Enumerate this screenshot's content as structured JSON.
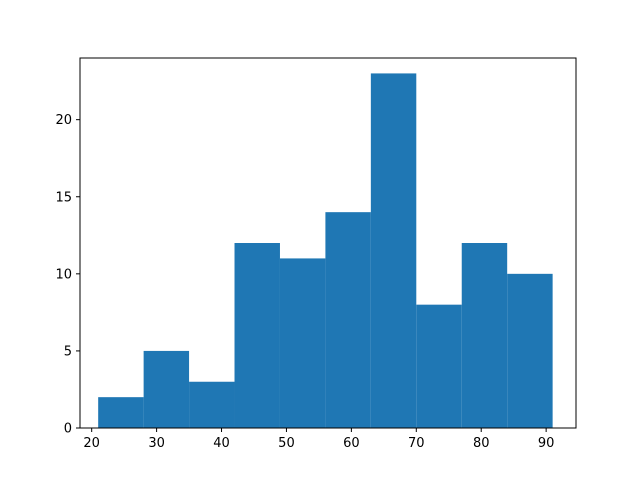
{
  "chart_data": {
    "type": "bar",
    "subtype": "histogram",
    "title": "",
    "xlabel": "",
    "ylabel": "",
    "bin_edges": [
      21,
      28,
      35,
      42,
      49,
      56,
      63,
      70,
      77,
      84,
      91
    ],
    "values": [
      2,
      5,
      3,
      12,
      11,
      14,
      23,
      8,
      12,
      10
    ],
    "xlim": [
      18.2,
      94.6
    ],
    "ylim": [
      0,
      24
    ],
    "x_ticks": [
      20,
      30,
      40,
      50,
      60,
      70,
      80,
      90
    ],
    "x_tick_labels": [
      "20",
      "30",
      "40",
      "50",
      "60",
      "70",
      "80",
      "90"
    ],
    "y_ticks": [
      0,
      5,
      10,
      15,
      20
    ],
    "y_tick_labels": [
      "0",
      "5",
      "10",
      "15",
      "20"
    ],
    "grid": false,
    "bar_color": "#1f77b4"
  }
}
